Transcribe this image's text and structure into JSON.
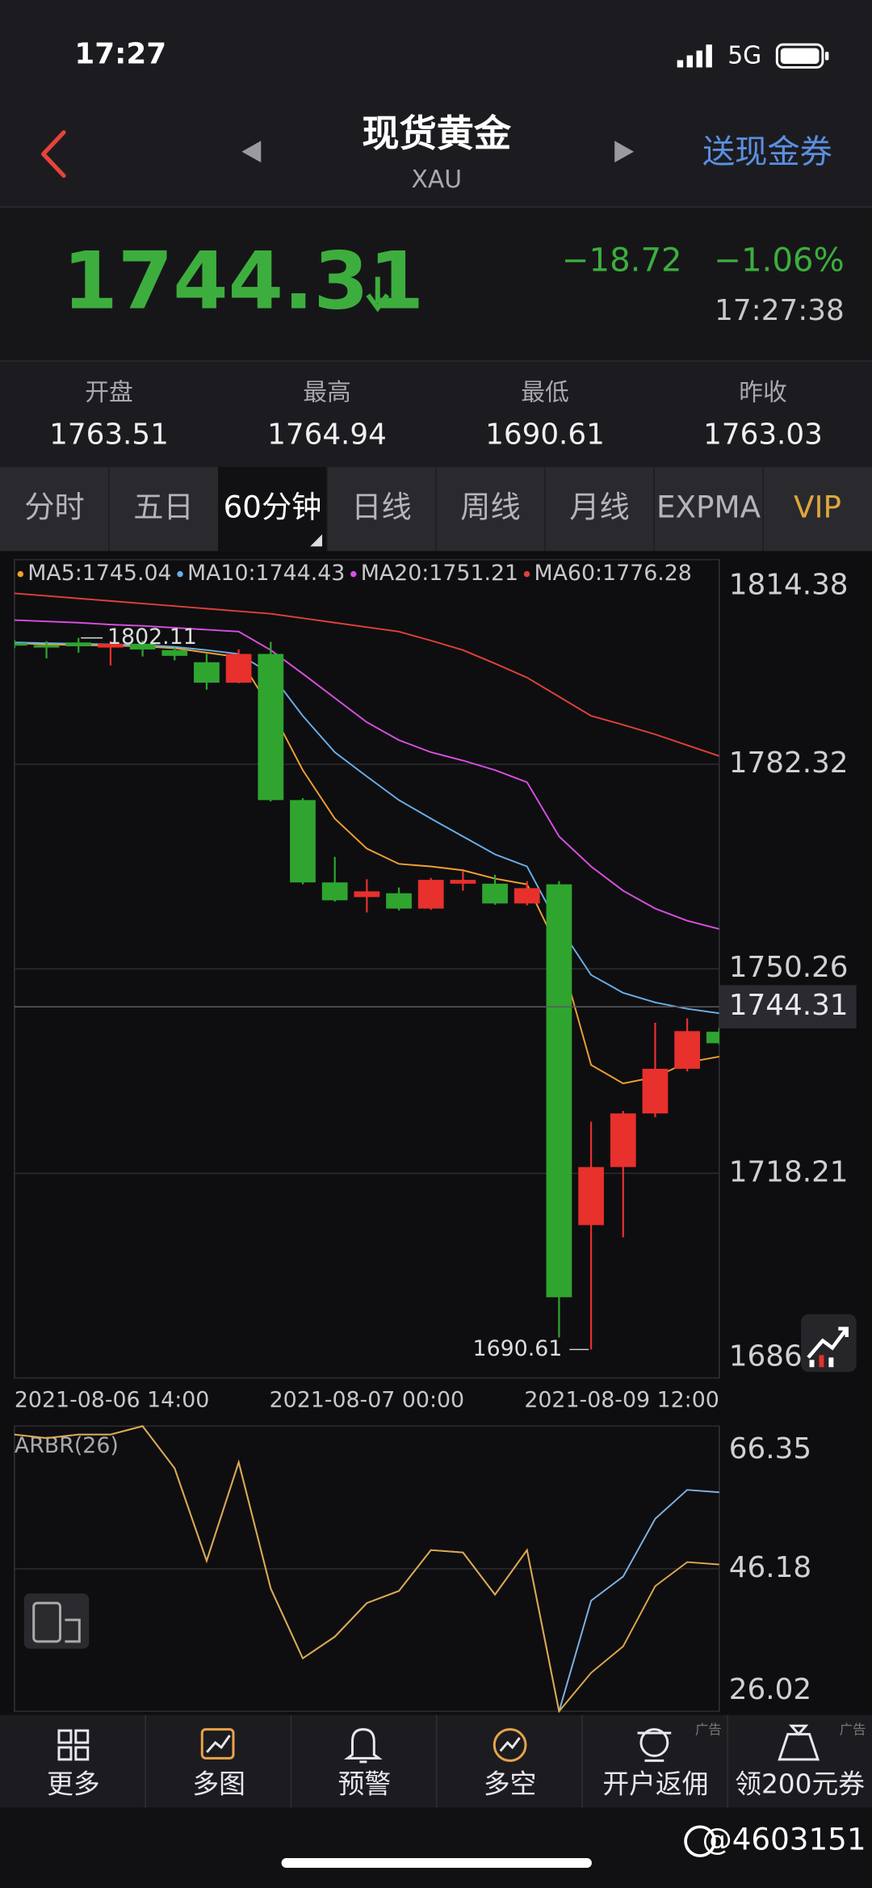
{
  "status": {
    "time": "17:27",
    "network": "5G"
  },
  "header": {
    "title": "现货黄金",
    "symbol": "XAU",
    "promo": "送现金券"
  },
  "quote": {
    "price": 1744.31,
    "change": "−18.72",
    "change_pct": "−1.06%",
    "time": "17:27:38"
  },
  "stats": [
    {
      "label": "开盘",
      "value": 1763.51
    },
    {
      "label": "最高",
      "value": 1764.94
    },
    {
      "label": "最低",
      "value": 1690.61
    },
    {
      "label": "昨收",
      "value": 1763.03
    }
  ],
  "tabs": {
    "items": [
      "分时",
      "五日",
      "60分钟",
      "日线",
      "周线",
      "月线",
      "EXPMA",
      "VIP"
    ],
    "active": 2
  },
  "chart_data": [
    {
      "type": "candlestick",
      "categories": [
        "2021-08-06 14:00",
        null,
        null,
        null,
        null,
        null,
        null,
        null,
        null,
        null,
        null,
        "2021-08-07 00:00",
        null,
        null,
        null,
        null,
        null,
        null,
        null,
        null,
        null,
        null,
        "2021-08-09 12:00"
      ],
      "open": [
        1801.3,
        1801.0,
        1801.4,
        1800.6,
        1801.2,
        1800.2,
        1798.3,
        1795.1,
        1799.6,
        1776.7,
        1763.8,
        1761.5,
        1762.1,
        1759.7,
        1763.6,
        1763.6,
        1760.5,
        1763.5,
        1710.1,
        1719.2,
        1727.6,
        1734.6,
        1740.4
      ],
      "high": [
        1801.8,
        1801.6,
        1802.11,
        1801.6,
        1801.7,
        1800.6,
        1799.6,
        1800.3,
        1801.5,
        1777.0,
        1767.8,
        1764.3,
        1763.0,
        1764.5,
        1765.6,
        1765.0,
        1764.0,
        1764.0,
        1726.3,
        1728.0,
        1741.8,
        1742.5,
        1741.0
      ],
      "low": [
        1800.5,
        1798.9,
        1799.8,
        1797.8,
        1799.2,
        1798.6,
        1794.0,
        1795.0,
        1776.5,
        1763.5,
        1760.8,
        1759.1,
        1759.4,
        1759.5,
        1762.5,
        1760.3,
        1760.2,
        1692.5,
        1690.61,
        1708.2,
        1727.0,
        1734.2,
        1738.4
      ],
      "close": [
        1800.9,
        1800.6,
        1800.8,
        1801.2,
        1800.3,
        1799.3,
        1795.1,
        1799.6,
        1776.7,
        1763.8,
        1761.0,
        1762.4,
        1759.7,
        1764.2,
        1764.2,
        1760.5,
        1762.9,
        1698.8,
        1719.2,
        1727.6,
        1734.6,
        1740.5,
        1738.6
      ],
      "up_color": "#e8302c",
      "down_color": "#2fa52f",
      "series": [
        {
          "name": "MA5:1745.04",
          "color": "#f0a030",
          "values": [
            1801.3,
            1801.1,
            1801.0,
            1800.9,
            1800.8,
            1800.5,
            1799.8,
            1799.1,
            1791.0,
            1781.4,
            1773.8,
            1769.1,
            1766.7,
            1766.3,
            1765.7,
            1764.4,
            1763.5,
            1753.1,
            1735.2,
            1732.3,
            1733.3,
            1735.6,
            1736.5
          ]
        },
        {
          "name": "MA10:1744.43",
          "color": "#6aaee8",
          "values": [
            1801.4,
            1801.3,
            1801.2,
            1801.1,
            1801.0,
            1800.7,
            1800.2,
            1799.6,
            1796.5,
            1789.9,
            1784.2,
            1780.4,
            1776.7,
            1773.8,
            1771.0,
            1768.2,
            1766.3,
            1756.9,
            1749.3,
            1746.5,
            1745.0,
            1744.0,
            1743.3
          ]
        },
        {
          "name": "MA20:1751.21",
          "color": "#d94fe0",
          "values": [
            1804.9,
            1804.7,
            1804.5,
            1804.2,
            1804.0,
            1803.7,
            1803.4,
            1803.1,
            1800.2,
            1796.5,
            1792.7,
            1788.9,
            1786.1,
            1784.2,
            1782.9,
            1781.4,
            1779.5,
            1771.0,
            1766.3,
            1762.5,
            1759.7,
            1757.8,
            1756.5
          ]
        },
        {
          "name": "MA60:1776.28",
          "color": "#e0403a",
          "values": [
            1809.1,
            1808.7,
            1808.3,
            1807.9,
            1807.5,
            1807.1,
            1806.7,
            1806.3,
            1805.9,
            1805.2,
            1804.5,
            1803.8,
            1803.1,
            1801.7,
            1800.2,
            1798.1,
            1795.9,
            1792.9,
            1789.9,
            1788.5,
            1787.0,
            1785.3,
            1783.6
          ]
        }
      ],
      "ylim": [
        1686.15,
        1814.38
      ],
      "yticks": [
        1686.15,
        1718.21,
        1750.26,
        1782.32,
        1814.38
      ],
      "grid": true,
      "last_price": 1744.31,
      "high_label": 1802.11,
      "low_label": 1690.61
    },
    {
      "type": "line",
      "title": "ARBR(26)",
      "series": [
        {
          "color": "#7fb2e6",
          "values": [
            65.16,
            64.65,
            65.16,
            65.16,
            66.35,
            60.39,
            47.29,
            61.24,
            43.38,
            33.51,
            36.57,
            41.33,
            43.04,
            48.82,
            48.48,
            42.52,
            48.82,
            26.02,
            41.67,
            45.08,
            53.24,
            57.33,
            56.99
          ]
        },
        {
          "color": "#e0a84a",
          "values": [
            65.16,
            64.65,
            65.16,
            65.16,
            66.35,
            60.39,
            47.29,
            61.24,
            43.38,
            33.51,
            36.57,
            41.33,
            43.04,
            48.82,
            48.48,
            42.52,
            48.82,
            26.02,
            31.46,
            35.21,
            43.72,
            47.12,
            46.78
          ]
        }
      ],
      "ylim": [
        26.02,
        66.35
      ],
      "yticks": [
        26.02,
        46.18,
        66.35
      ],
      "grid": true
    }
  ],
  "nav": [
    {
      "label": "更多"
    },
    {
      "label": "多图"
    },
    {
      "label": "预警"
    },
    {
      "label": "多空"
    },
    {
      "label": "开户返佣"
    },
    {
      "label": "领200元券"
    }
  ],
  "ad_label": "广告",
  "watermark": "@4603151"
}
